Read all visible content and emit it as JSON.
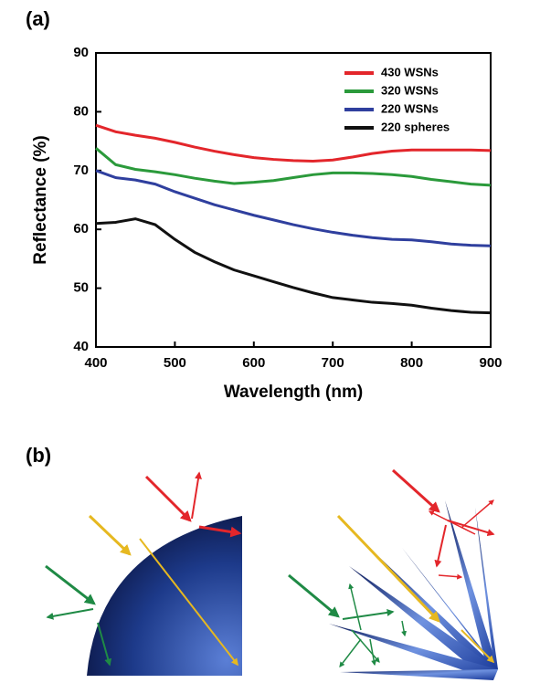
{
  "panel_labels": [
    "(a)",
    "(b)"
  ],
  "chart_data": {
    "type": "line",
    "x_label": "Wavelength (nm)",
    "y_label": "Reflectance (%)",
    "x": [
      400,
      425,
      450,
      475,
      500,
      525,
      550,
      575,
      600,
      625,
      650,
      675,
      700,
      725,
      750,
      775,
      800,
      825,
      850,
      875,
      900
    ],
    "series": [
      {
        "name": "430 WSNs",
        "color": "#e3262b",
        "values": [
          77.7,
          76.6,
          76,
          75.5,
          74.8,
          74,
          73.3,
          72.7,
          72.2,
          71.9,
          71.7,
          71.6,
          71.8,
          72.3,
          72.9,
          73.3,
          73.5,
          73.5,
          73.5,
          73.5,
          73.4
        ]
      },
      {
        "name": "320 WSNs",
        "color": "#2b9a3b",
        "values": [
          73.8,
          71,
          70.2,
          69.8,
          69.3,
          68.7,
          68.2,
          67.8,
          68,
          68.3,
          68.8,
          69.3,
          69.6,
          69.6,
          69.5,
          69.3,
          69,
          68.5,
          68.1,
          67.7,
          67.5
        ]
      },
      {
        "name": "220 WSNs",
        "color": "#2f3f9e",
        "values": [
          70,
          68.8,
          68.4,
          67.7,
          66.4,
          65.3,
          64.2,
          63.3,
          62.4,
          61.6,
          60.8,
          60.1,
          59.5,
          59,
          58.6,
          58.3,
          58.2,
          57.9,
          57.5,
          57.3,
          57.2
        ]
      },
      {
        "name": "220 spheres",
        "color": "#111111",
        "values": [
          61,
          61.2,
          61.8,
          60.8,
          58.3,
          56.1,
          54.5,
          53.1,
          52.1,
          51.1,
          50.1,
          49.2,
          48.4,
          48,
          47.6,
          47.4,
          47.1,
          46.6,
          46.2,
          45.9,
          45.8
        ]
      }
    ],
    "xlim": [
      400,
      900
    ],
    "xticks": [
      400,
      500,
      600,
      700,
      800,
      900
    ],
    "ylim": [
      40,
      90
    ],
    "yticks": [
      40,
      50,
      60,
      70,
      80,
      90
    ],
    "legend": "upper right"
  }
}
